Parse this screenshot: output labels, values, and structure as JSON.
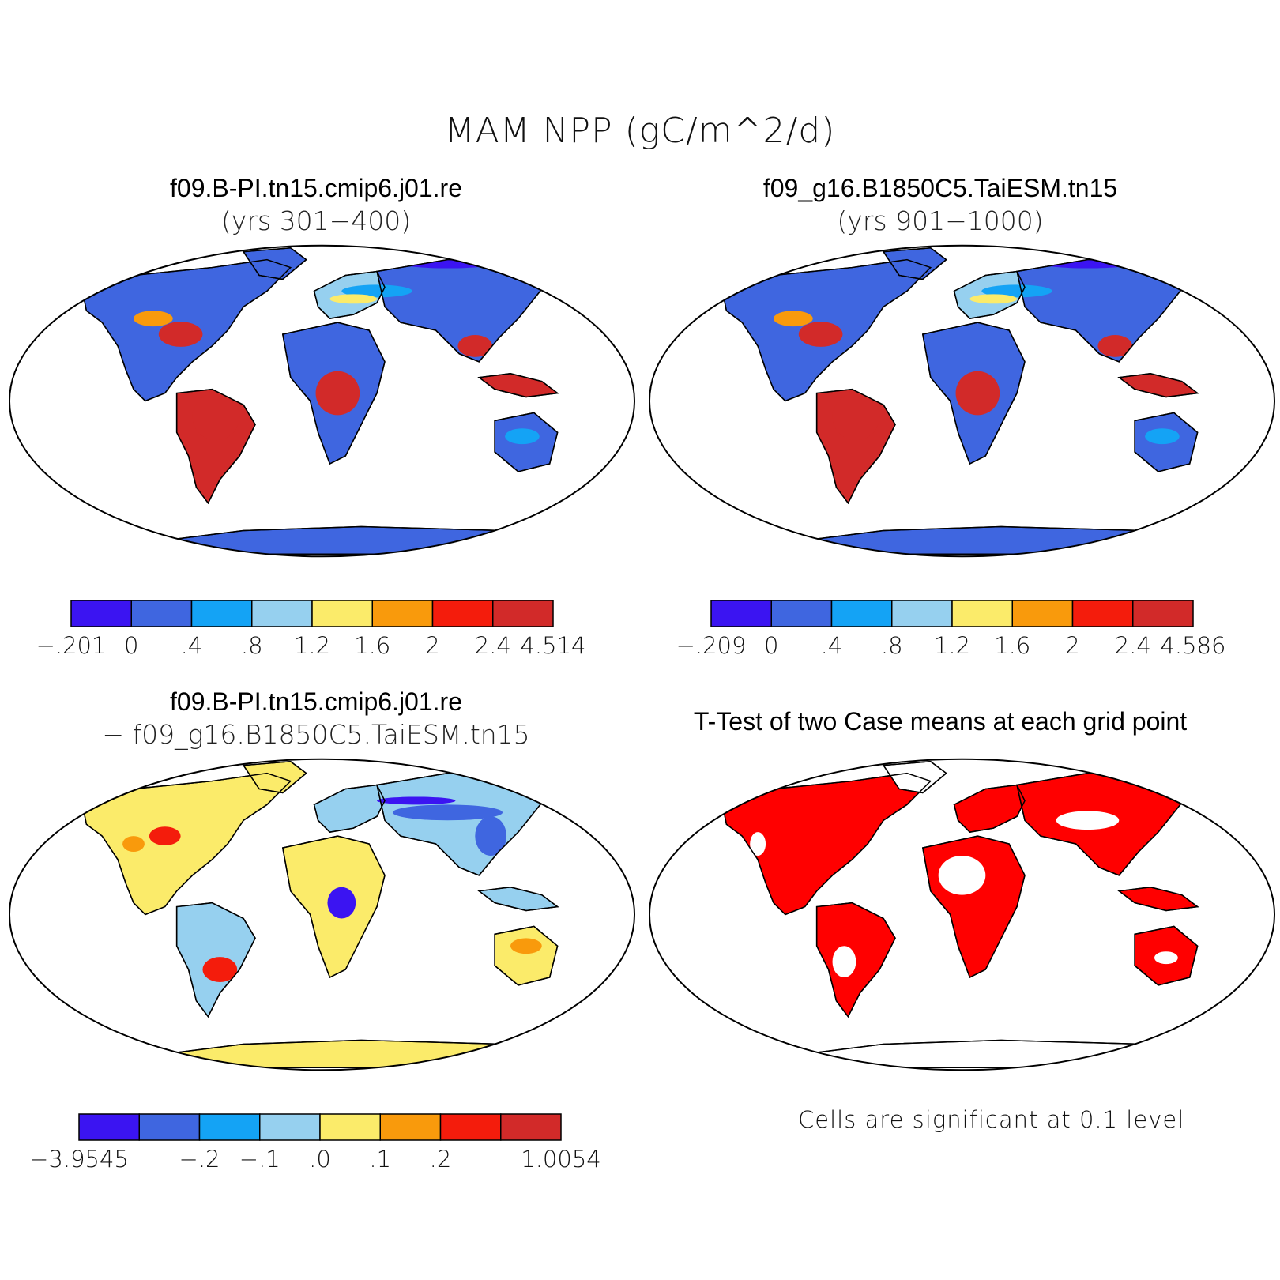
{
  "title": "MAM NPP (gC/m^2/d)",
  "panels": [
    {
      "id": "case1",
      "title": "f09.B-PI.tn15.cmip6.j01.re",
      "subtitle": "(yrs 301−400)",
      "legend": {
        "colors": [
          "#3b14f2",
          "#3f66e0",
          "#14a3f5",
          "#96d0ef",
          "#fbeb6a",
          "#f99a0c",
          "#f41c0c",
          "#d22a29"
        ],
        "labels": [
          "−.201",
          "0",
          ".4",
          ".8",
          "1.2",
          "1.6",
          "2",
          "2.4",
          "4.514"
        ]
      }
    },
    {
      "id": "case2",
      "title": "f09_g16.B1850C5.TaiESM.tn15",
      "subtitle": "(yrs 901−1000)",
      "legend": {
        "colors": [
          "#3b14f2",
          "#3f66e0",
          "#14a3f5",
          "#96d0ef",
          "#fbeb6a",
          "#f99a0c",
          "#f41c0c",
          "#d22a29"
        ],
        "labels": [
          "−.209",
          "0",
          ".4",
          ".8",
          "1.2",
          "1.6",
          "2",
          "2.4",
          "4.586"
        ]
      }
    },
    {
      "id": "diff",
      "title": "f09.B-PI.tn15.cmip6.j01.re",
      "subtitle": "− f09_g16.B1850C5.TaiESM.tn15",
      "legend": {
        "colors": [
          "#3b14f2",
          "#3f66e0",
          "#14a3f5",
          "#96d0ef",
          "#fbeb6a",
          "#f99a0c",
          "#f41c0c",
          "#d22a29"
        ],
        "labels": [
          "−3.9545",
          "",
          "−.2",
          "−.1",
          ".0",
          ".1",
          ".2",
          "",
          "1.0054"
        ]
      }
    },
    {
      "id": "ttest",
      "title": "T-Test of two Case means at each grid point",
      "note": "Cells are significant at 0.1 level",
      "sig_color": "#ff0000"
    }
  ]
}
